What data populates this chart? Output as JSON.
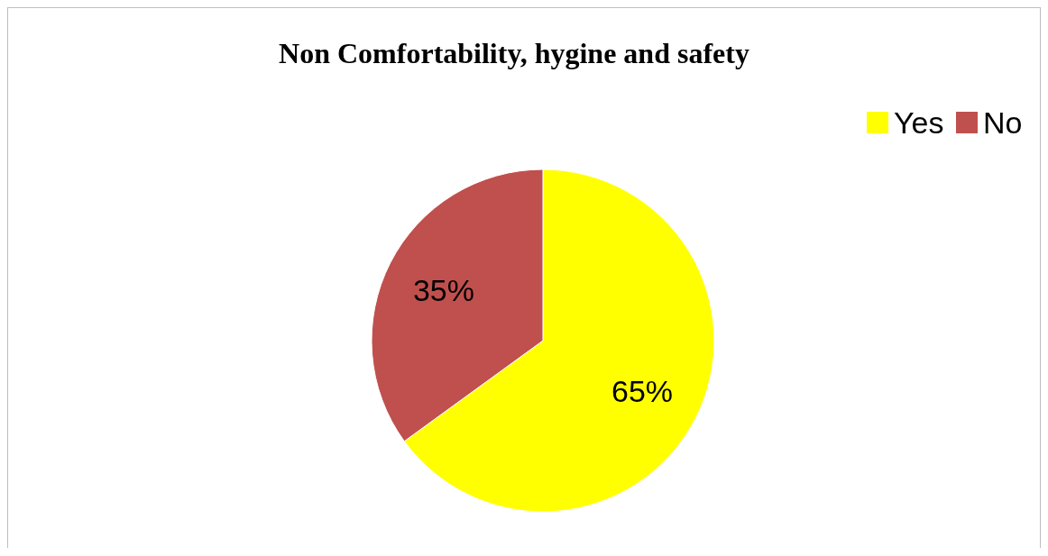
{
  "chart_data": {
    "type": "pie",
    "title": "Non Comfortability, hygine and safety",
    "categories": [
      "Yes",
      "No"
    ],
    "values": [
      65,
      35
    ],
    "colors": [
      "#ffff00",
      "#c0504d"
    ],
    "value_labels": [
      "65%",
      "35%"
    ],
    "legend": "top right"
  }
}
